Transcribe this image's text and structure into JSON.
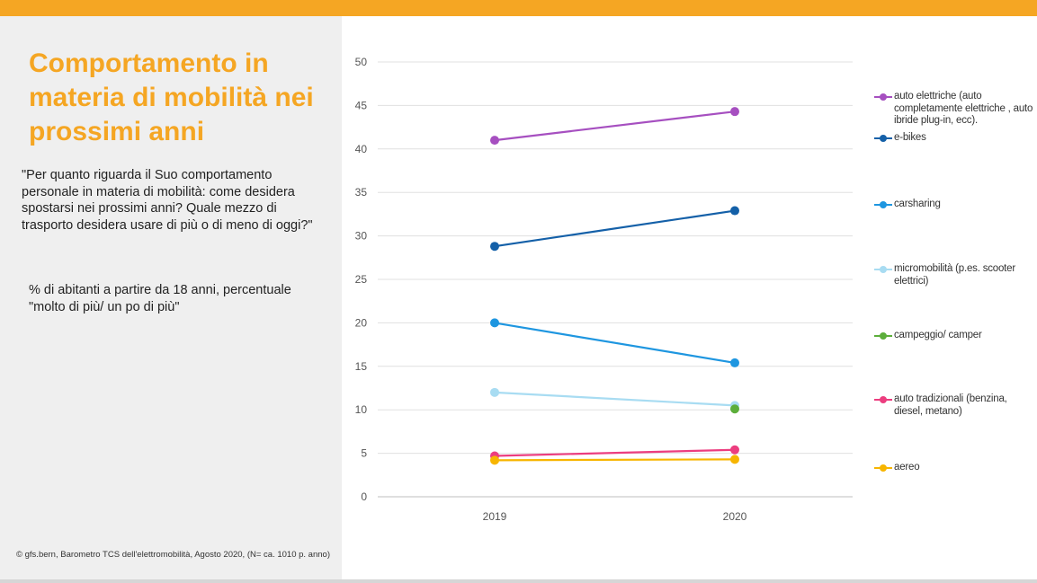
{
  "title": "Comportamento in materia di mobilità nei prossimi anni",
  "question": "\"Per quanto riguarda il Suo comportamento personale in materia di mobilità: come desidera spostarsi nei prossimi anni? Quale mezzo di trasporto desidera usare di più o di meno di oggi?\"",
  "subtitle": "% di abitanti a partire da 18 anni, percentuale \"molto di più/ un po di più\"",
  "source": "© gfs.bern, Barometro TCS dell'elettromobilità, Agosto 2020, (N= ca. 1010 p. anno)",
  "chart_data": {
    "type": "line",
    "x": [
      "2019",
      "2020"
    ],
    "ylim": [
      0,
      50
    ],
    "yticks": [
      0,
      5,
      10,
      15,
      20,
      25,
      30,
      35,
      40,
      45,
      50
    ],
    "grid": true,
    "legend_position": "right",
    "series": [
      {
        "name": "auto elettriche (auto completamente elettriche , auto ibride plug-in, ecc).",
        "color": "#a64fc0",
        "values": [
          41,
          44.3
        ]
      },
      {
        "name": "e-bikes",
        "color": "#1460a8",
        "values": [
          28.8,
          32.9
        ]
      },
      {
        "name": "carsharing",
        "color": "#1e96e0",
        "values": [
          20,
          15.4
        ]
      },
      {
        "name": "micromobilità (p.es. scooter elettrici)",
        "color": "#a8dcf2",
        "values": [
          12,
          10.5
        ]
      },
      {
        "name": "campeggio/ camper",
        "color": "#5cae3b",
        "values": [
          null,
          10.1
        ]
      },
      {
        "name": "auto tradizionali (benzina, diesel, metano)",
        "color": "#ec3d7f",
        "values": [
          4.7,
          5.4
        ]
      },
      {
        "name": "aereo",
        "color": "#f7b500",
        "values": [
          4.2,
          4.3
        ]
      }
    ]
  }
}
